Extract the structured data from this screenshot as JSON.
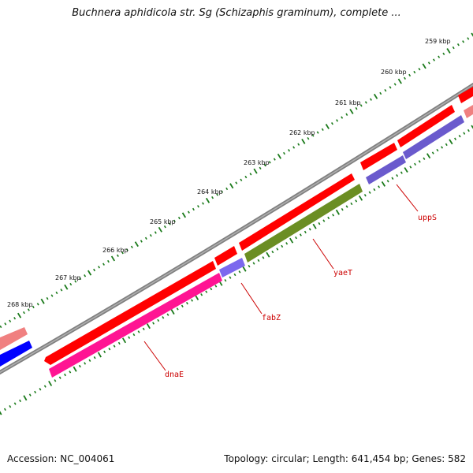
{
  "title": "Buchnera aphidicola str. Sg (Schizaphis graminum), complete ...",
  "footer": {
    "accession": "Accession: NC_004061",
    "summary": "Topology: circular; Length: 641,454 bp; Genes: 582"
  },
  "ticks": [
    "259 kbp",
    "260 kbp",
    "261 kbp",
    "262 kbp",
    "263 kbp",
    "264 kbp",
    "265 kbp",
    "266 kbp",
    "267 kbp",
    "268 kbp"
  ],
  "genes": {
    "uppS": {
      "label": "uppS",
      "color": "#6a5acd"
    },
    "yaeT": {
      "label": "yaeT",
      "color": "#6b8e23"
    },
    "fabZ": {
      "label": "fabZ",
      "color": "#7b68ee"
    },
    "dnaE": {
      "label": "dnaE",
      "color": "#ff1493"
    }
  },
  "colors": {
    "backbone": "#808080",
    "forward_cds": "#ff0000",
    "reverse_cds": "#0000ff",
    "ticks": "#1a7a1a",
    "labels": "#cc0000"
  }
}
